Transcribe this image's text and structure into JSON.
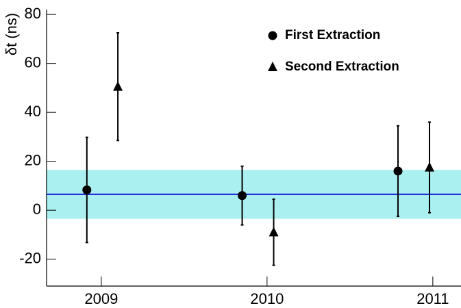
{
  "chart_data": {
    "type": "scatter",
    "y_label": "δt (ns)",
    "xlim": [
      2008.67,
      2011.17
    ],
    "xticks": [
      2009,
      2010,
      2011
    ],
    "ylim": [
      -31,
      82
    ],
    "yticks": [
      -20,
      0,
      20,
      40,
      60,
      80
    ],
    "band": {
      "low": -3.5,
      "high": 16.5,
      "line": 6.5,
      "color": "#aaf0f0",
      "line_color": "#1a1adc"
    },
    "series": [
      {
        "name": "First Extraction",
        "marker": "circle",
        "color": "#000000",
        "x": [
          2008.913,
          2009.85,
          2010.79
        ],
        "values": [
          8.3,
          6,
          16
        ],
        "errors": [
          21.5,
          12,
          18.5
        ]
      },
      {
        "name": "Second Extraction",
        "marker": "triangle",
        "color": "#000000",
        "x": [
          2009.1,
          2010.04,
          2010.98
        ],
        "values": [
          50.5,
          -9,
          17.5
        ],
        "errors": [
          22,
          13.5,
          18.5
        ]
      }
    ]
  }
}
